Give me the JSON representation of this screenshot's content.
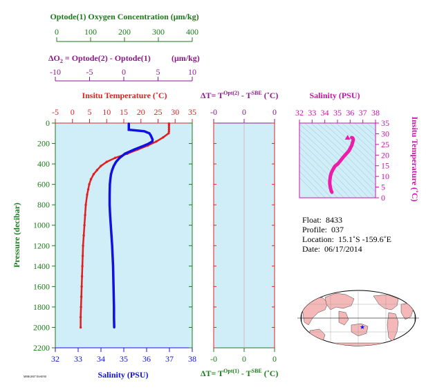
{
  "titles": {
    "oxygen_axis": "Optode(1) Oxygen Concentration (μm/kg)",
    "delta_o2_axis_lead": "ΔO",
    "delta_o2_axis_sub": "2",
    "delta_o2_axis_rest": " = Optode(2) - Optode(1)",
    "delta_o2_axis_units": "(μm/kg)",
    "temp_axis": "Insitu Temperature (˚C)",
    "dt_top_lead": "ΔT= T",
    "dt_top_sup1": "Opt(2)",
    "dt_top_mid": " - T",
    "dt_top_sup2": "SBE",
    "dt_top_units": " (˚C)",
    "dt_bottom_lead": "ΔT= T",
    "dt_bottom_sup1": "Opt(1)",
    "dt_bottom_mid": " - T",
    "dt_bottom_sup2": "SBE",
    "dt_bottom_units": " (˚C)",
    "salinity_top": "Salinity (PSU)",
    "salinity_bottom": "Salinity (PSU)",
    "pressure_axis": "Pressure (decibar)",
    "inset_temp_axis": "Insitu Temperature (˚C)",
    "footer_small": "M8BGB07 ESSEN8"
  },
  "info": {
    "float_label": "Float:",
    "float_value": "8433",
    "profile_label": "Profile:",
    "profile_value": "037",
    "location_label": "Location:",
    "location_value": "15.1˚S  -159.6˚E",
    "date_label": "Date:",
    "date_value": "06/17/2014"
  },
  "colors": {
    "green": "#1a7a1a",
    "purple": "#8a1a8a",
    "red": "#e02020",
    "blue": "#1010e0",
    "magenta": "#ee1aaa",
    "panel_bg": "#d0eef8",
    "land": "#f4b8b8"
  },
  "chart_data": [
    {
      "type": "line",
      "name": "main-profile",
      "ylabel": "Pressure (decibar)",
      "ylim": [
        2200,
        0
      ],
      "yticks": [
        0,
        200,
        400,
        600,
        800,
        1000,
        1200,
        1400,
        1600,
        1800,
        2000,
        2200
      ],
      "axes": {
        "temperature": {
          "label": "Insitu Temperature (˚C)",
          "range": [
            -5,
            35
          ],
          "ticks": [
            -5,
            0,
            5,
            10,
            15,
            20,
            25,
            30,
            35
          ]
        },
        "salinity": {
          "label": "Salinity (PSU)",
          "range": [
            32,
            38
          ],
          "ticks": [
            32,
            33,
            34,
            35,
            36,
            37,
            38
          ]
        },
        "oxygen": {
          "label": "Optode(1) Oxygen Concentration (μm/kg)",
          "range": [
            0,
            400
          ],
          "ticks": [
            0,
            100,
            200,
            300,
            400
          ]
        },
        "delta_o2": {
          "label": "ΔO2 = Optode(2) - Optode(1) (μm/kg)",
          "range": [
            -10,
            10
          ],
          "ticks": [
            -10,
            -5,
            0,
            5,
            10
          ]
        }
      },
      "series": [
        {
          "axis": "temperature",
          "pressure": [
            5,
            20,
            40,
            60,
            80,
            100,
            140,
            180,
            220,
            260,
            300,
            340,
            380,
            420,
            460,
            500,
            550,
            600,
            650,
            700,
            800,
            900,
            1000,
            1100,
            1200,
            1300,
            1400,
            1500,
            1600,
            1700,
            1800,
            1900,
            2000
          ],
          "values": [
            28.2,
            28.2,
            28.2,
            28.2,
            28.2,
            28.1,
            26.5,
            24.5,
            22.0,
            19.0,
            16.0,
            12.5,
            10.0,
            8.3,
            7.2,
            6.2,
            5.4,
            4.9,
            4.6,
            4.3,
            3.9,
            3.7,
            3.5,
            3.3,
            3.1,
            3.0,
            2.9,
            2.8,
            2.7,
            2.6,
            2.5,
            2.4,
            2.4
          ]
        },
        {
          "axis": "salinity",
          "pressure": [
            5,
            20,
            40,
            60,
            65,
            80,
            100,
            120,
            140,
            160,
            180,
            200,
            220,
            260,
            300,
            340,
            380,
            420,
            460,
            500,
            550,
            600,
            700,
            800,
            900,
            1000,
            1100,
            1200,
            1300,
            1400,
            1500,
            1600,
            1700,
            1800,
            1900,
            2000
          ],
          "values": [
            35.22,
            35.22,
            35.22,
            35.22,
            35.22,
            35.9,
            36.12,
            36.18,
            36.22,
            36.26,
            36.25,
            36.1,
            35.9,
            35.45,
            35.05,
            34.82,
            34.66,
            34.56,
            34.49,
            34.44,
            34.41,
            34.39,
            34.38,
            34.38,
            34.4,
            34.43,
            34.46,
            34.49,
            34.51,
            34.53,
            34.54,
            34.55,
            34.56,
            34.57,
            34.57,
            34.58
          ]
        }
      ]
    },
    {
      "type": "line",
      "name": "delta-t",
      "top_axis": {
        "range": [
          -0.4,
          0.4
        ],
        "ticks": [
          "-0",
          "0",
          "0"
        ]
      },
      "bottom_axis": {
        "range": [
          -0.4,
          0.4
        ],
        "ticks": [
          "-0",
          "0",
          "0"
        ]
      },
      "ylim": [
        2200,
        0
      ],
      "series": []
    },
    {
      "type": "scatter",
      "name": "ts-diagram",
      "xlabel": "Salinity (PSU)",
      "ylabel": "Insitu Temperature (˚C)",
      "xlim": [
        32,
        38
      ],
      "ylim": [
        0,
        35
      ],
      "xticks": [
        32,
        33,
        34,
        35,
        36,
        37,
        38
      ],
      "yticks": [
        0,
        5,
        10,
        15,
        20,
        25,
        30,
        35
      ],
      "series": [
        {
          "x": [
            34.56,
            34.5,
            34.46,
            34.42,
            34.4,
            34.39,
            34.4,
            34.44,
            34.5,
            34.62,
            34.8,
            35.05,
            35.45,
            35.9,
            36.12,
            36.22,
            36.25,
            36.2,
            36.12
          ],
          "y": [
            2.6,
            3.3,
            4.3,
            5.4,
            6.2,
            7.2,
            8.3,
            10.0,
            11.5,
            13.0,
            14.8,
            16.0,
            19.0,
            22.0,
            24.5,
            26.5,
            27.3,
            28.0,
            28.2
          ]
        }
      ],
      "marker_triangle": {
        "x": 35.8,
        "y": 28.2
      }
    }
  ],
  "map": {
    "float_position": {
      "lat": -15.1,
      "lon": -159.6
    }
  }
}
